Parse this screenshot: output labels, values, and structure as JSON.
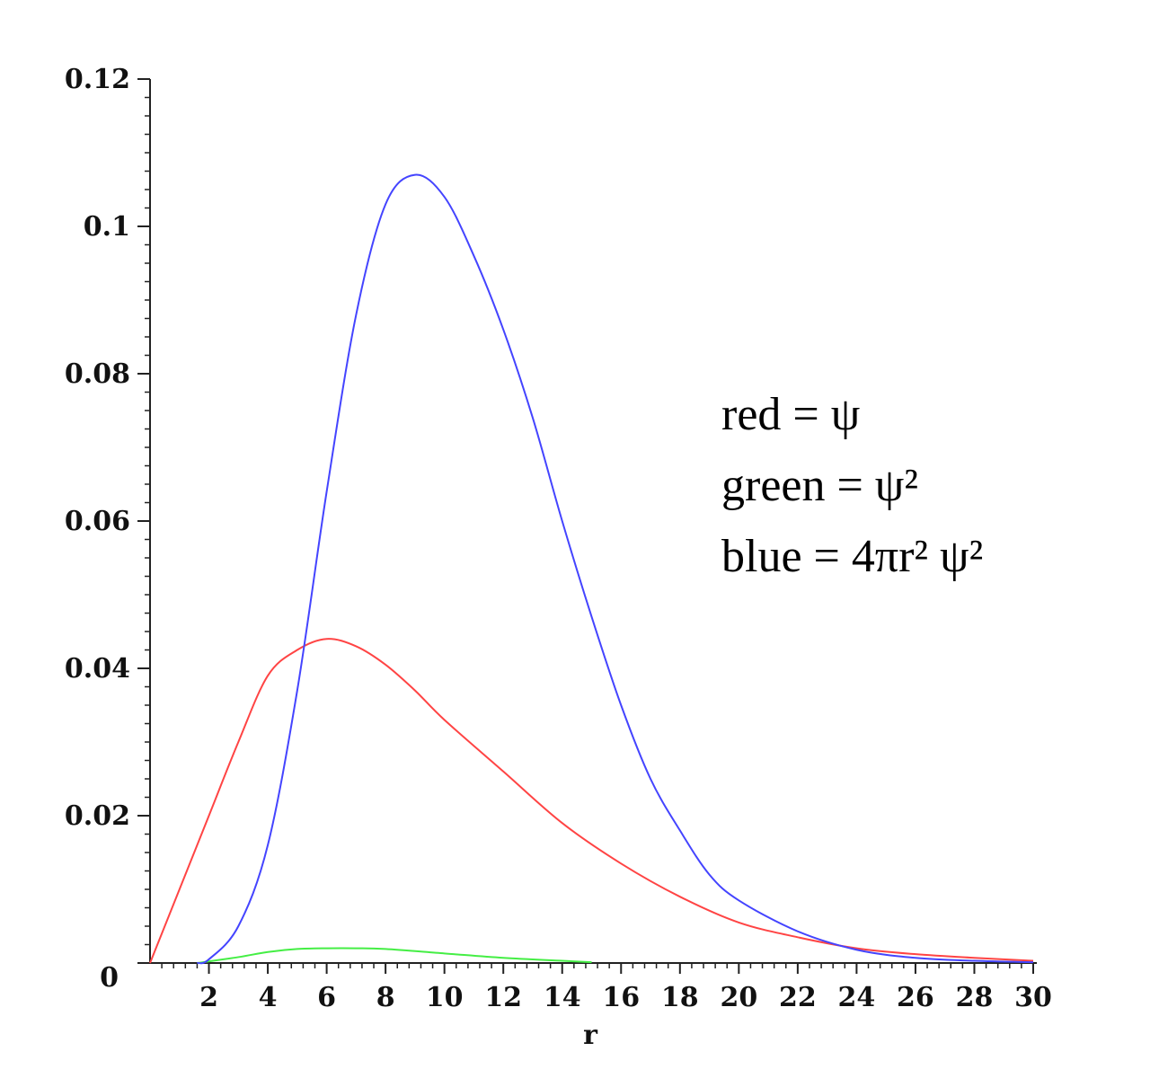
{
  "chart_data": {
    "type": "line",
    "title": "",
    "xlabel": "r",
    "ylabel": "",
    "xlim": [
      0,
      30
    ],
    "ylim": [
      0,
      0.12
    ],
    "grid": false,
    "legend_placement": "right",
    "x_ticks": [
      "2",
      "4",
      "6",
      "8",
      "10",
      "12",
      "14",
      "16",
      "18",
      "20",
      "22",
      "24",
      "26",
      "28",
      "30"
    ],
    "y_ticks": [
      "0",
      "0.02",
      "0.04",
      "0.06",
      "0.08",
      "0.1",
      "0.12"
    ],
    "legend": [
      "red = ψ",
      "green = ψ²",
      "blue = 4πr² ψ²"
    ],
    "series": [
      {
        "color": "#ff4444",
        "x": [
          0,
          1,
          2,
          3,
          4,
          5,
          6,
          7,
          8,
          9,
          10,
          12,
          14,
          16,
          18,
          20,
          22,
          24,
          26,
          28,
          30
        ],
        "y": [
          0,
          0.01,
          0.02,
          0.03,
          0.039,
          0.0425,
          0.044,
          0.043,
          0.0405,
          0.037,
          0.033,
          0.026,
          0.019,
          0.0135,
          0.009,
          0.0055,
          0.0035,
          0.002,
          0.0012,
          0.0007,
          0.0003
        ]
      },
      {
        "color": "#44ee44",
        "x": [
          1.6,
          3,
          4,
          5,
          6,
          7,
          8,
          10,
          12,
          14,
          15
        ],
        "y": [
          0,
          0.0008,
          0.0015,
          0.0019,
          0.002,
          0.002,
          0.0019,
          0.0013,
          0.0007,
          0.0003,
          0.0001
        ]
      },
      {
        "color": "#4444ff",
        "x": [
          1.6,
          2,
          3,
          4,
          5,
          6,
          7,
          8,
          9,
          10,
          11,
          12,
          13,
          14,
          15,
          16,
          17,
          18,
          19,
          20,
          22,
          24,
          26,
          28,
          30
        ],
        "y": [
          0,
          0.0005,
          0.005,
          0.016,
          0.037,
          0.064,
          0.088,
          0.103,
          0.107,
          0.104,
          0.096,
          0.086,
          0.074,
          0.06,
          0.047,
          0.035,
          0.025,
          0.018,
          0.012,
          0.0085,
          0.0043,
          0.0018,
          0.0007,
          0.0003,
          0.0001
        ]
      }
    ]
  }
}
